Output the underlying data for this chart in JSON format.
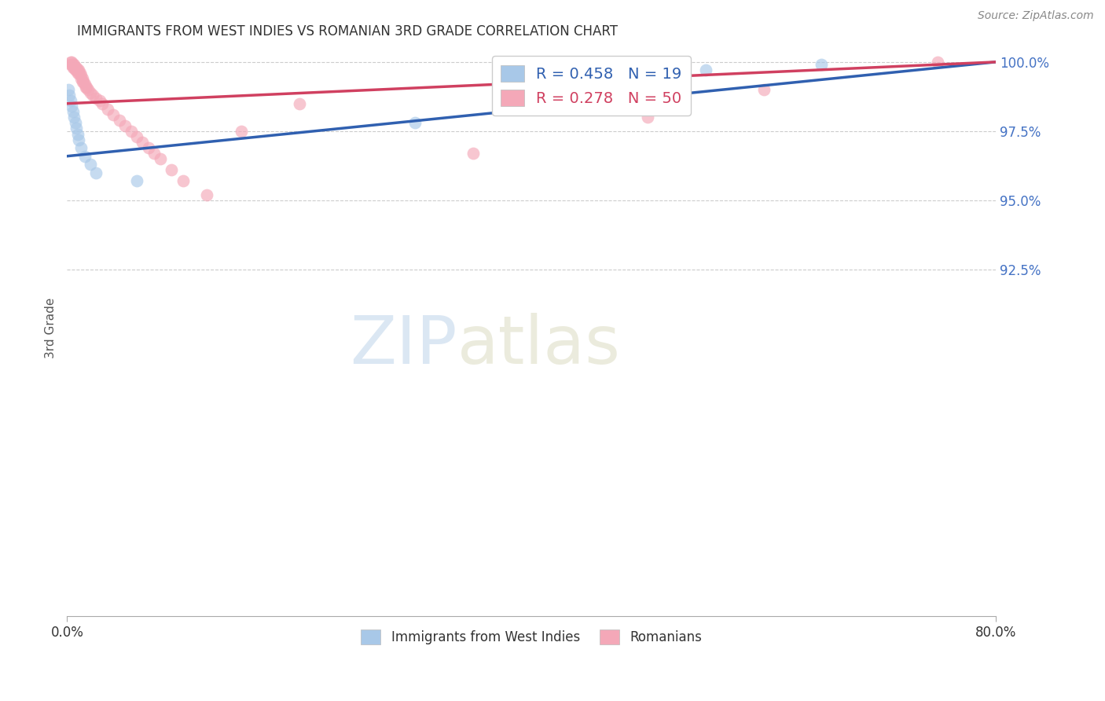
{
  "title": "IMMIGRANTS FROM WEST INDIES VS ROMANIAN 3RD GRADE CORRELATION CHART",
  "source": "Source: ZipAtlas.com",
  "ylabel": "3rd Grade",
  "legend_label1": "Immigrants from West Indies",
  "legend_label2": "Romanians",
  "R1": 0.458,
  "N1": 19,
  "R2": 0.278,
  "N2": 50,
  "color1": "#A8C8E8",
  "color2": "#F4A8B8",
  "trendline1_color": "#3060B0",
  "trendline2_color": "#D04060",
  "xmin": 0.0,
  "xmax": 0.8,
  "ymin": 0.8,
  "ymax": 1.008,
  "yticks": [
    1.0,
    0.975,
    0.95,
    0.925
  ],
  "ytick_labels": [
    "100.0%",
    "97.5%",
    "95.0%",
    "92.5%"
  ],
  "xtick_positions": [
    0.0,
    0.8
  ],
  "xtick_labels": [
    "0.0%",
    "80.0%"
  ],
  "blue_x": [
    0.001,
    0.002,
    0.003,
    0.004,
    0.005,
    0.006,
    0.007,
    0.008,
    0.009,
    0.01,
    0.012,
    0.015,
    0.02,
    0.025,
    0.06,
    0.3,
    0.38,
    0.55,
    0.65
  ],
  "blue_y": [
    0.99,
    0.988,
    0.986,
    0.984,
    0.982,
    0.98,
    0.978,
    0.976,
    0.974,
    0.972,
    0.969,
    0.966,
    0.963,
    0.96,
    0.957,
    0.978,
    1.0,
    0.997,
    0.999
  ],
  "pink_x": [
    0.003,
    0.003,
    0.004,
    0.004,
    0.005,
    0.005,
    0.006,
    0.006,
    0.007,
    0.007,
    0.008,
    0.008,
    0.009,
    0.009,
    0.01,
    0.01,
    0.011,
    0.012,
    0.012,
    0.013,
    0.013,
    0.014,
    0.015,
    0.016,
    0.017,
    0.018,
    0.02,
    0.022,
    0.025,
    0.028,
    0.03,
    0.035,
    0.04,
    0.045,
    0.05,
    0.055,
    0.06,
    0.065,
    0.07,
    0.075,
    0.08,
    0.09,
    0.1,
    0.12,
    0.15,
    0.2,
    0.35,
    0.5,
    0.6,
    0.75
  ],
  "pink_y": [
    1.0,
    0.999,
    1.0,
    0.999,
    0.999,
    0.998,
    0.999,
    0.998,
    0.998,
    0.997,
    0.998,
    0.997,
    0.997,
    0.996,
    0.997,
    0.996,
    0.996,
    0.995,
    0.994,
    0.994,
    0.993,
    0.993,
    0.992,
    0.991,
    0.991,
    0.99,
    0.989,
    0.988,
    0.987,
    0.986,
    0.985,
    0.983,
    0.981,
    0.979,
    0.977,
    0.975,
    0.973,
    0.971,
    0.969,
    0.967,
    0.965,
    0.961,
    0.957,
    0.952,
    0.975,
    0.985,
    0.967,
    0.98,
    0.99,
    1.0
  ]
}
